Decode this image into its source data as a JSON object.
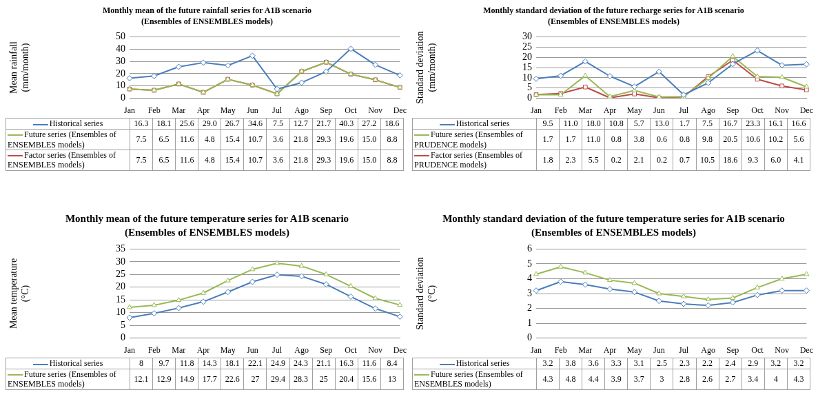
{
  "chart_data": [
    {
      "type": "line",
      "title": "Monthly mean of the future rainfall series for A1B scenario (Ensembles of ENSEMBLES models)",
      "ylabel": "Mean rainfall (mm/month)",
      "categories": [
        "Jan",
        "Feb",
        "Mar",
        "Apr",
        "May",
        "Jun",
        "Jul",
        "Ago",
        "Sep",
        "Oct",
        "Nov",
        "Dec"
      ],
      "ylim": [
        0,
        50
      ],
      "yticks": [
        0,
        10,
        20,
        30,
        40,
        50
      ],
      "grid": "y",
      "legend": "bottom",
      "series": [
        {
          "name": "Historical series",
          "color": "#4a7ebb",
          "marker": "diamond",
          "values": [
            16.3,
            18.1,
            25.6,
            29.0,
            26.7,
            34.6,
            7.5,
            12.7,
            21.7,
            40.3,
            27.2,
            18.6
          ],
          "value_labels": [
            "16.3",
            "18.1",
            "25.6",
            "29.0",
            "26.7",
            "34.6",
            "7.5",
            "12.7",
            "21.7",
            "40.3",
            "27.2",
            "18.6"
          ]
        },
        {
          "name": "Future series (Ensembles of ENSEMBLES models)",
          "color": "#98b954",
          "marker": "triangle",
          "values": [
            7.5,
            6.5,
            11.6,
            4.8,
            15.4,
            10.7,
            3.6,
            21.8,
            29.3,
            19.6,
            15.0,
            8.8
          ],
          "value_labels": [
            "7.5",
            "6.5",
            "11.6",
            "4.8",
            "15.4",
            "10.7",
            "3.6",
            "21.8",
            "29.3",
            "19.6",
            "15.0",
            "8.8"
          ]
        },
        {
          "name": "Factor series (Ensembles of ENSEMBLES models)",
          "color": "#be4b48",
          "marker": "square",
          "values": [
            7.5,
            6.5,
            11.6,
            4.8,
            15.4,
            10.7,
            3.6,
            21.8,
            29.3,
            19.6,
            15.0,
            8.8
          ],
          "value_labels": [
            "7.5",
            "6.5",
            "11.6",
            "4.8",
            "15.4",
            "10.7",
            "3.6",
            "21.8",
            "29.3",
            "19.6",
            "15.0",
            "8.8"
          ]
        }
      ]
    },
    {
      "type": "line",
      "title": "Monthly standard deviation of the future recharge series  for A1B scenario (Ensembles of ENSEMBLES models)",
      "ylabel": "Standard deviation (mm/month)",
      "categories": [
        "Jan",
        "Feb",
        "Mar",
        "Apr",
        "May",
        "Jun",
        "Jul",
        "Ago",
        "Sep",
        "Oct",
        "Nov",
        "Dec"
      ],
      "ylim": [
        0,
        30
      ],
      "yticks": [
        0,
        5,
        10,
        15,
        20,
        25,
        30
      ],
      "grid": "y",
      "legend": "bottom",
      "series": [
        {
          "name": "Historical series",
          "color": "#4a7ebb",
          "marker": "diamond",
          "values": [
            9.5,
            11.0,
            18.0,
            10.8,
            5.7,
            13.0,
            1.7,
            7.5,
            16.7,
            23.3,
            16.1,
            16.6
          ],
          "value_labels": [
            "9.5",
            "11.0",
            "18.0",
            "10.8",
            "5.7",
            "13.0",
            "1.7",
            "7.5",
            "16.7",
            "23.3",
            "16.1",
            "16.6"
          ]
        },
        {
          "name": "Future series (Ensembles of PRUDENCE models)",
          "color": "#98b954",
          "marker": "triangle",
          "values": [
            1.7,
            1.7,
            11.0,
            0.8,
            3.8,
            0.6,
            0.8,
            9.8,
            20.5,
            10.6,
            10.2,
            5.6
          ],
          "value_labels": [
            "1.7",
            "1.7",
            "11.0",
            "0.8",
            "3.8",
            "0.6",
            "0.8",
            "9.8",
            "20.5",
            "10.6",
            "10.2",
            "5.6"
          ]
        },
        {
          "name": "Factor series (Ensembles of PRUDENCE models)",
          "color": "#be4b48",
          "marker": "square",
          "values": [
            1.8,
            2.3,
            5.5,
            0.2,
            2.1,
            0.2,
            0.7,
            10.5,
            18.6,
            9.3,
            6.0,
            4.1
          ],
          "value_labels": [
            "1.8",
            "2.3",
            "5.5",
            "0.2",
            "2.1",
            "0.2",
            "0.7",
            "10.5",
            "18.6",
            "9.3",
            "6.0",
            "4.1"
          ]
        }
      ]
    },
    {
      "type": "line",
      "title": "Monthly mean of the future temperature series  for A1B scenario (Ensembles of ENSEMBLES models)",
      "ylabel": "Mean temperature (°C)",
      "categories": [
        "Jan",
        "Feb",
        "Mar",
        "Apr",
        "May",
        "Jun",
        "Jul",
        "Ago",
        "Sep",
        "Oct",
        "Nov",
        "Dec"
      ],
      "ylim": [
        0,
        35
      ],
      "yticks": [
        0,
        5,
        10,
        15,
        20,
        25,
        30,
        35
      ],
      "grid": "y",
      "legend": "bottom",
      "series": [
        {
          "name": "Historical series",
          "color": "#4a7ebb",
          "marker": "diamond",
          "values": [
            8,
            9.7,
            11.8,
            14.3,
            18.1,
            22.1,
            24.9,
            24.3,
            21.1,
            16.3,
            11.6,
            8.4
          ],
          "value_labels": [
            "8",
            "9.7",
            "11.8",
            "14.3",
            "18.1",
            "22.1",
            "24.9",
            "24.3",
            "21.1",
            "16.3",
            "11.6",
            "8.4"
          ]
        },
        {
          "name": "Future series (Ensembles of ENSEMBLES models)",
          "color": "#98b954",
          "marker": "triangle",
          "values": [
            12.1,
            12.9,
            14.9,
            17.7,
            22.6,
            27,
            29.4,
            28.3,
            25,
            20.4,
            15.6,
            13
          ],
          "value_labels": [
            "12.1",
            "12.9",
            "14.9",
            "17.7",
            "22.6",
            "27",
            "29.4",
            "28.3",
            "25",
            "20.4",
            "15.6",
            "13"
          ]
        }
      ]
    },
    {
      "type": "line",
      "title": "Monthly standard deviation of the future temperature series  for A1B scenario (Ensembles of ENSEMBLES models)",
      "ylabel": "Standard deviation (°C)",
      "categories": [
        "Jan",
        "Feb",
        "Mar",
        "Apr",
        "May",
        "Jun",
        "Jul",
        "Ago",
        "Sep",
        "Oct",
        "Nov",
        "Dec"
      ],
      "ylim": [
        0,
        6
      ],
      "yticks": [
        0,
        1,
        2,
        3,
        4,
        5,
        6
      ],
      "grid": "y",
      "legend": "bottom",
      "series": [
        {
          "name": "Historical series",
          "color": "#4a7ebb",
          "marker": "diamond",
          "values": [
            3.2,
            3.8,
            3.6,
            3.3,
            3.1,
            2.5,
            2.3,
            2.2,
            2.4,
            2.9,
            3.2,
            3.2
          ],
          "value_labels": [
            "3.2",
            "3.8",
            "3.6",
            "3.3",
            "3.1",
            "2.5",
            "2.3",
            "2.2",
            "2.4",
            "2.9",
            "3.2",
            "3.2"
          ]
        },
        {
          "name": "Future series (Ensembles of ENSEMBLES models)",
          "color": "#98b954",
          "marker": "triangle",
          "values": [
            4.3,
            4.8,
            4.4,
            3.9,
            3.7,
            3,
            2.8,
            2.6,
            2.7,
            3.4,
            4,
            4.3
          ],
          "value_labels": [
            "4.3",
            "4.8",
            "4.4",
            "3.9",
            "3.7",
            "3",
            "2.8",
            "2.6",
            "2.7",
            "3.4",
            "4",
            "4.3"
          ]
        }
      ]
    }
  ]
}
